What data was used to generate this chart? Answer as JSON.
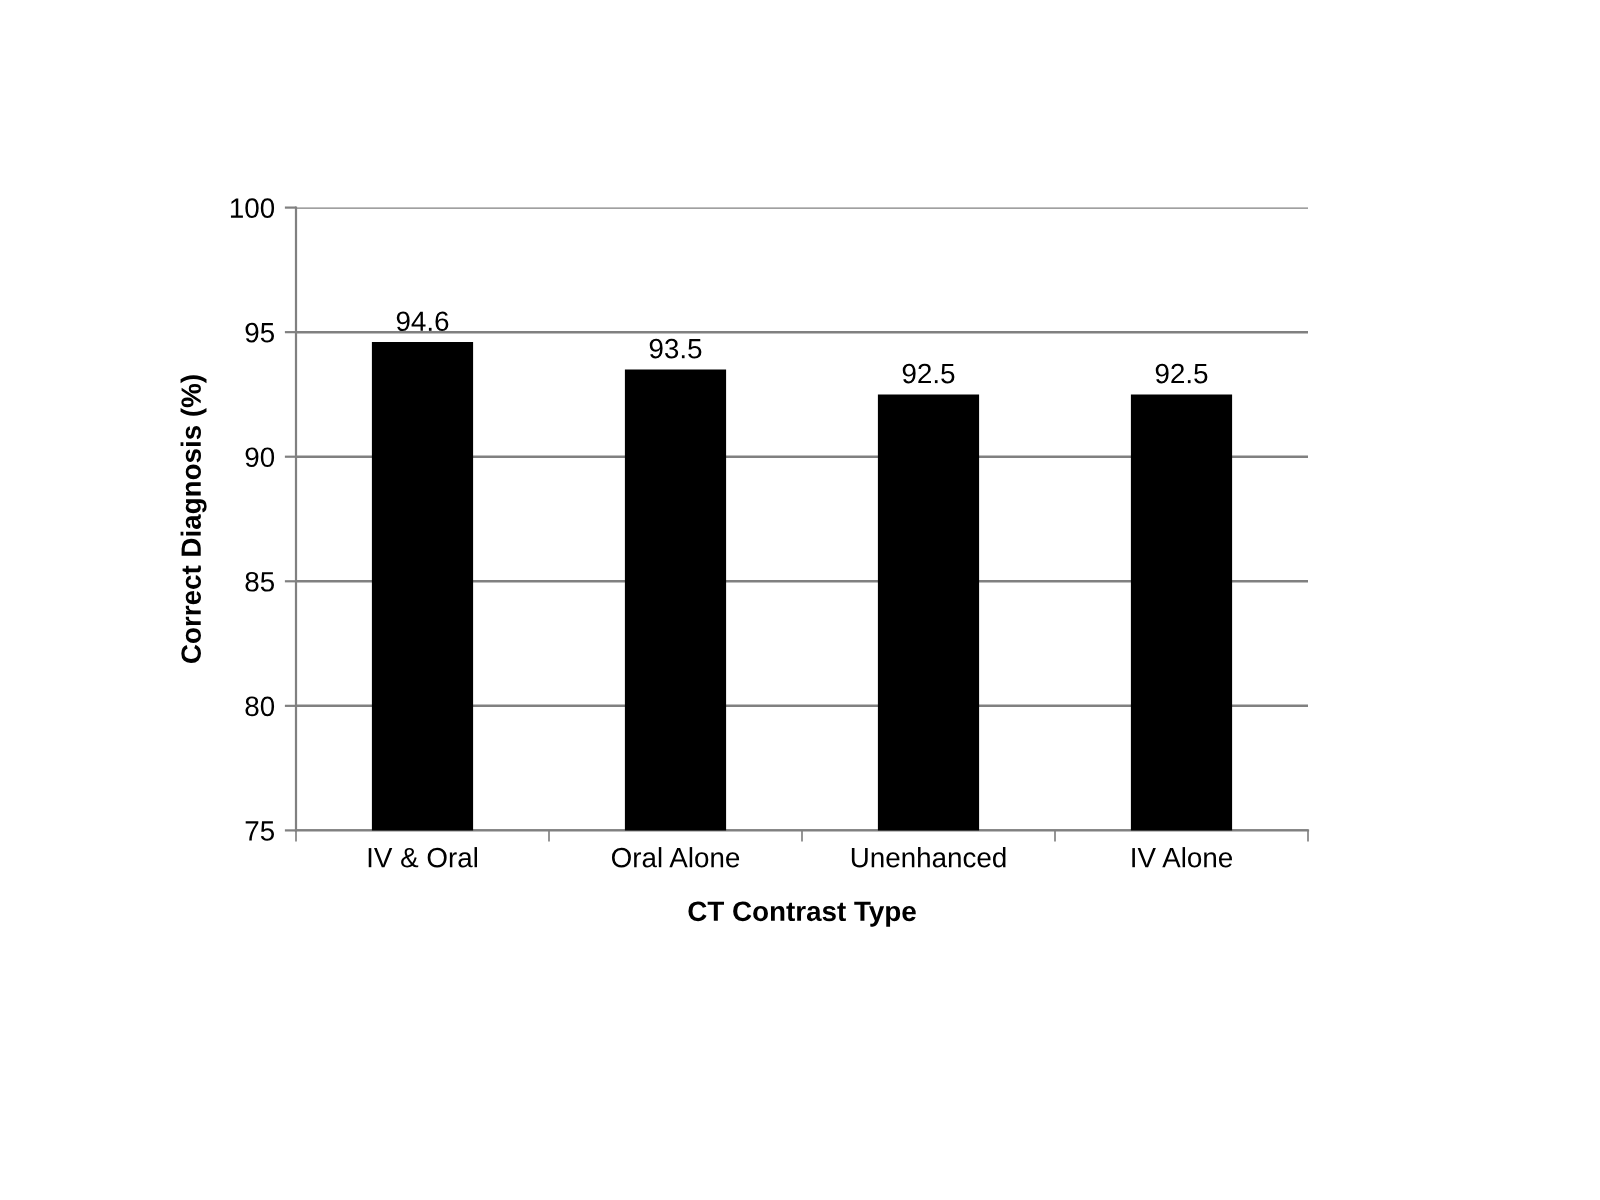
{
  "chart_data": {
    "type": "bar",
    "xlabel": "CT Contrast Type",
    "ylabel": "Correct Diagnosis (%)",
    "categories": [
      "IV & Oral",
      "Oral Alone",
      "Unenhanced",
      "IV Alone"
    ],
    "values": [
      94.6,
      93.5,
      92.5,
      92.5
    ],
    "color": "#000000",
    "ylim": [
      75,
      100
    ],
    "yticks": [
      75,
      80,
      85,
      90,
      95,
      100
    ],
    "grid": "y",
    "data_labels": true
  }
}
